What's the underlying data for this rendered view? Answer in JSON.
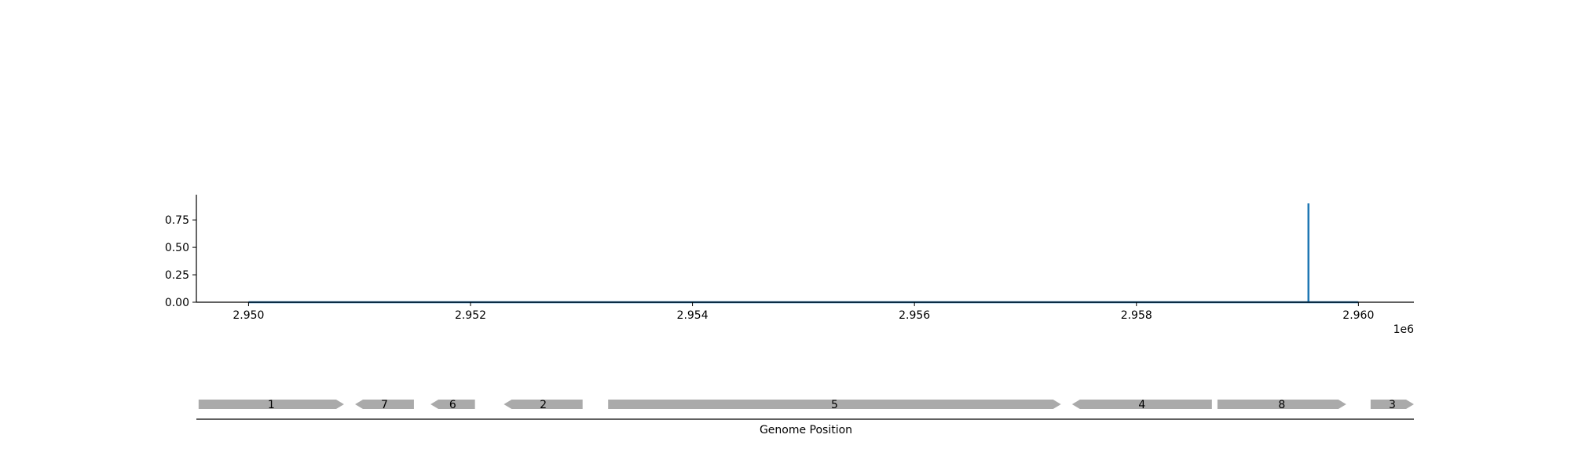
{
  "chart_data": [
    {
      "type": "line",
      "title": "",
      "xlabel": "",
      "ylabel": "",
      "x_offset_label": "1e6",
      "xlim": [
        2.94953,
        2.9605
      ],
      "ylim": [
        0,
        0.98
      ],
      "x_ticks": [
        2.95,
        2.952,
        2.954,
        2.956,
        2.958,
        2.96
      ],
      "x_tick_labels": [
        "2.950",
        "2.952",
        "2.954",
        "2.956",
        "2.958",
        "2.960"
      ],
      "y_ticks": [
        0.0,
        0.25,
        0.5,
        0.75
      ],
      "y_tick_labels": [
        "0.00",
        "0.25",
        "0.50",
        "0.75"
      ],
      "color": "#1f77b4",
      "series": [
        {
          "x": [
            2.95,
            2.95955,
            2.95955,
            2.95955,
            2.96
          ],
          "y": [
            0.0,
            0.0,
            0.9,
            0.0,
            0.0
          ]
        }
      ]
    },
    {
      "type": "gene-map",
      "xlabel": "Genome Position",
      "color": "#aaaaaa",
      "genes": [
        {
          "label": "1",
          "start": 2.94955,
          "end": 2.95086,
          "strand": "+"
        },
        {
          "label": "7",
          "start": 2.95096,
          "end": 2.95149,
          "strand": "-"
        },
        {
          "label": "6",
          "start": 2.95164,
          "end": 2.95204,
          "strand": "-"
        },
        {
          "label": "2",
          "start": 2.9523,
          "end": 2.95301,
          "strand": "-"
        },
        {
          "label": "5",
          "start": 2.95324,
          "end": 2.95732,
          "strand": "+"
        },
        {
          "label": "4",
          "start": 2.95742,
          "end": 2.95868,
          "strand": "-"
        },
        {
          "label": "8",
          "start": 2.95873,
          "end": 2.95989,
          "strand": "+"
        },
        {
          "label": "3",
          "start": 2.96011,
          "end": 2.9605,
          "strand": "+"
        }
      ]
    }
  ]
}
